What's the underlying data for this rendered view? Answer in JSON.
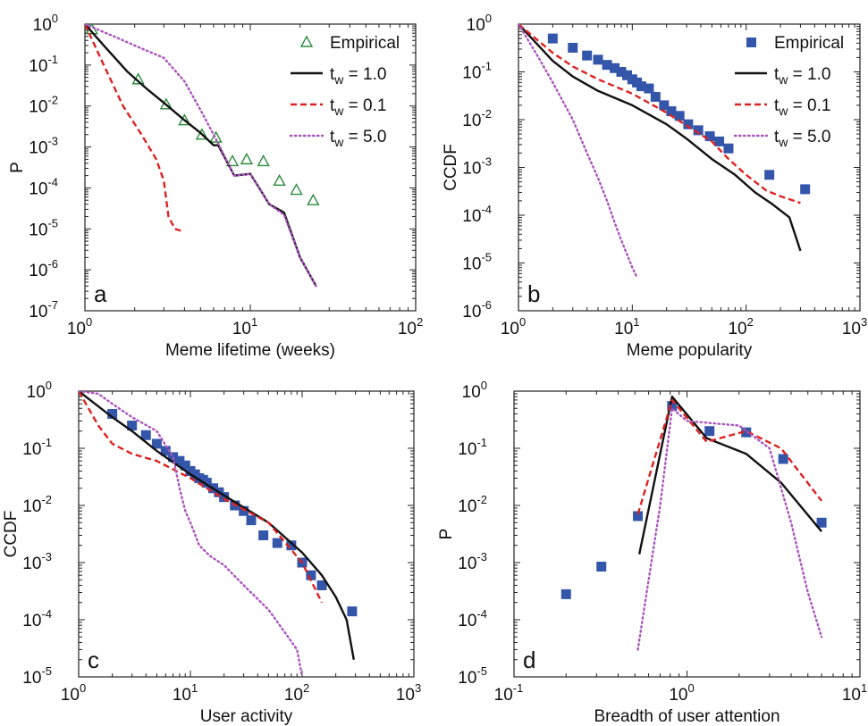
{
  "colors": {
    "empirical_a": "#2e8b3e",
    "empirical_blue": "#3355aa",
    "tw1": "#111111",
    "tw01": "#dd2222",
    "tw5": "#aa55bb"
  },
  "legend": {
    "empirical": "Empirical",
    "tw1": "t",
    "tw1_sub": "w",
    "tw1_rest": " = 1.0",
    "tw01_rest": " = 0.1",
    "tw5_rest": " = 5.0"
  },
  "chart_data": [
    {
      "type": "line",
      "panel_label": "a",
      "xlabel": "Meme lifetime (weeks)",
      "ylabel": "P",
      "xscale": "log",
      "yscale": "log",
      "xlim": [
        1,
        100
      ],
      "ylim": [
        1e-07,
        1
      ],
      "x_ticks": [
        1,
        10,
        100
      ],
      "y_ticks": [
        1e-07,
        1e-06,
        1e-05,
        0.0001,
        0.001,
        0.01,
        0.1,
        1
      ],
      "legend_position": "top-right",
      "series": [
        {
          "name": "Empirical",
          "style": "triangle",
          "x": [
            1.1,
            2.1,
            3.1,
            4.0,
            5.1,
            6.2,
            7.8,
            9.5,
            12,
            15,
            19,
            24
          ],
          "y": [
            0.75,
            0.045,
            0.011,
            0.0045,
            0.002,
            0.0017,
            0.00045,
            0.0005,
            0.00045,
            0.00015,
            9e-05,
            5e-05
          ]
        },
        {
          "name": "t_w = 1.0",
          "style": "solid",
          "x": [
            1.0,
            1.3,
            1.8,
            2.4,
            3.0,
            4.0,
            5.0,
            6.0,
            6.4,
            8.0,
            10,
            11.5,
            13,
            16,
            20,
            25
          ],
          "y": [
            1,
            0.3,
            0.07,
            0.025,
            0.012,
            0.0045,
            0.0022,
            0.0011,
            0.0011,
            0.0002,
            0.00022,
            9e-05,
            4e-05,
            2.5e-05,
            2e-06,
            4e-07
          ]
        },
        {
          "name": "t_w = 0.1",
          "style": "dashed",
          "x": [
            1.0,
            1.3,
            1.7,
            2.2,
            2.7,
            3.0,
            3.2,
            3.5,
            3.8
          ],
          "y": [
            1,
            0.1,
            0.01,
            0.002,
            0.0005,
            0.00015,
            2e-05,
            1e-05,
            9e-06
          ]
        },
        {
          "name": "t_w = 5.0",
          "style": "dotted",
          "x": [
            1.0,
            1.5,
            2.0,
            3.0,
            4.0,
            5.0,
            6.0,
            6.4,
            8.0,
            10,
            13,
            16,
            20,
            25
          ],
          "y": [
            1,
            0.5,
            0.3,
            0.15,
            0.04,
            0.008,
            0.002,
            0.0012,
            0.0002,
            0.00022,
            4e-05,
            2.2e-05,
            2e-06,
            4e-07
          ]
        }
      ]
    },
    {
      "type": "line",
      "panel_label": "b",
      "xlabel": "Meme popularity",
      "ylabel": "CCDF",
      "xscale": "log",
      "yscale": "log",
      "xlim": [
        1,
        1000
      ],
      "ylim": [
        1e-06,
        1
      ],
      "x_ticks": [
        1,
        10,
        100,
        1000
      ],
      "y_ticks": [
        1e-06,
        1e-05,
        0.0001,
        0.001,
        0.01,
        0.1,
        1
      ],
      "legend_position": "top-right",
      "series": [
        {
          "name": "Empirical",
          "style": "square",
          "x": [
            2,
            3,
            4,
            5,
            6,
            7,
            8,
            9,
            10,
            11,
            12,
            14,
            16,
            19,
            22,
            26,
            31,
            38,
            48,
            58,
            70,
            160,
            330
          ],
          "y": [
            0.5,
            0.32,
            0.22,
            0.18,
            0.14,
            0.12,
            0.1,
            0.085,
            0.07,
            0.06,
            0.05,
            0.045,
            0.03,
            0.02,
            0.015,
            0.012,
            0.008,
            0.006,
            0.0045,
            0.0035,
            0.0025,
            0.0007,
            0.00035
          ]
        },
        {
          "name": "t_w = 1.0",
          "style": "solid",
          "x": [
            1,
            2,
            3,
            5,
            10,
            20,
            30,
            50,
            80,
            120,
            170,
            240,
            300
          ],
          "y": [
            1,
            0.17,
            0.08,
            0.04,
            0.02,
            0.008,
            0.004,
            0.0015,
            0.0007,
            0.0003,
            0.00017,
            9e-05,
            1.8e-05
          ]
        },
        {
          "name": "t_w = 0.1",
          "style": "dashed",
          "x": [
            1,
            2,
            3,
            5,
            10,
            20,
            30,
            50,
            70,
            100,
            150,
            200,
            300
          ],
          "y": [
            1,
            0.25,
            0.13,
            0.07,
            0.035,
            0.014,
            0.0075,
            0.0035,
            0.0015,
            0.0007,
            0.00033,
            0.00025,
            0.00018
          ]
        },
        {
          "name": "t_w = 5.0",
          "style": "dotted",
          "x": [
            1,
            1.5,
            2,
            3,
            4,
            5,
            6,
            7,
            8,
            9,
            10,
            11
          ],
          "y": [
            1,
            0.2,
            0.06,
            0.01,
            0.002,
            0.0006,
            0.0002,
            7e-05,
            3e-05,
            1.5e-05,
            8e-06,
            5e-06
          ]
        }
      ]
    },
    {
      "type": "line",
      "panel_label": "c",
      "xlabel": "User activity",
      "ylabel": "CCDF",
      "xscale": "log",
      "yscale": "log",
      "xlim": [
        1,
        1000
      ],
      "ylim": [
        1e-05,
        1
      ],
      "x_ticks": [
        1,
        10,
        100,
        1000
      ],
      "y_ticks": [
        1e-05,
        0.0001,
        0.001,
        0.01,
        0.1,
        1
      ],
      "series": [
        {
          "name": "Empirical",
          "style": "square",
          "x": [
            2,
            3,
            4,
            5,
            6,
            7,
            8,
            9,
            10,
            11,
            12,
            13,
            14,
            16,
            18,
            20,
            25,
            30,
            35,
            45,
            60,
            80,
            100,
            120,
            150,
            280
          ],
          "y": [
            0.4,
            0.25,
            0.17,
            0.12,
            0.09,
            0.07,
            0.06,
            0.05,
            0.04,
            0.035,
            0.03,
            0.028,
            0.025,
            0.02,
            0.017,
            0.014,
            0.01,
            0.008,
            0.0055,
            0.003,
            0.0022,
            0.002,
            0.001,
            0.0006,
            0.0004,
            0.00014
          ]
        },
        {
          "name": "t_w = 1.0",
          "style": "solid",
          "x": [
            1,
            2,
            3,
            5,
            10,
            20,
            50,
            100,
            150,
            200,
            250,
            290
          ],
          "y": [
            1,
            0.35,
            0.2,
            0.09,
            0.035,
            0.015,
            0.005,
            0.0015,
            0.0006,
            0.00025,
            0.0001,
            2e-05
          ]
        },
        {
          "name": "t_w = 0.1",
          "style": "dashed",
          "x": [
            1,
            1.5,
            2,
            3,
            5,
            10,
            20,
            50,
            100,
            150
          ],
          "y": [
            1,
            0.25,
            0.12,
            0.08,
            0.06,
            0.03,
            0.013,
            0.005,
            0.001,
            0.0002
          ]
        },
        {
          "name": "t_w = 5.0",
          "style": "dotted",
          "x": [
            1,
            1.5,
            2,
            3,
            5,
            7,
            8,
            9,
            10,
            12,
            15,
            20,
            30,
            50,
            70,
            90,
            100
          ],
          "y": [
            1,
            0.9,
            0.6,
            0.35,
            0.2,
            0.07,
            0.02,
            0.008,
            0.005,
            0.002,
            0.0013,
            0.0009,
            0.0004,
            0.00015,
            6e-05,
            3e-05,
            1e-05
          ]
        }
      ]
    },
    {
      "type": "line",
      "panel_label": "d",
      "xlabel": "Breadth of user attention",
      "ylabel": "P",
      "xscale": "log",
      "yscale": "log",
      "xlim": [
        0.1,
        10
      ],
      "ylim": [
        1e-05,
        1
      ],
      "x_ticks": [
        0.1,
        1,
        10
      ],
      "y_ticks": [
        1e-05,
        0.0001,
        0.001,
        0.01,
        0.1,
        1
      ],
      "series": [
        {
          "name": "Empirical",
          "style": "square",
          "x": [
            0.2,
            0.32,
            0.52,
            0.82,
            1.35,
            2.2,
            3.6,
            6.0
          ],
          "y": [
            0.00028,
            0.00085,
            0.0065,
            0.55,
            0.2,
            0.19,
            0.065,
            0.005
          ]
        },
        {
          "name": "t_w = 1.0",
          "style": "solid",
          "x": [
            0.53,
            0.82,
            1.3,
            2.2,
            3.5,
            6.0
          ],
          "y": [
            0.0014,
            0.8,
            0.15,
            0.08,
            0.025,
            0.0035
          ]
        },
        {
          "name": "t_w = 0.1",
          "style": "dashed",
          "x": [
            0.52,
            0.82,
            1.3,
            2.2,
            3.5,
            6.0
          ],
          "y": [
            0.007,
            0.7,
            0.13,
            0.2,
            0.1,
            0.012
          ]
        },
        {
          "name": "t_w = 5.0",
          "style": "dotted",
          "x": [
            0.52,
            0.7,
            0.82,
            1.0,
            1.3,
            2.0,
            3.0,
            4.0,
            5.0,
            6.0
          ],
          "y": [
            3e-05,
            0.01,
            0.5,
            0.3,
            0.28,
            0.25,
            0.1,
            0.005,
            0.0003,
            5e-05
          ]
        }
      ]
    }
  ]
}
